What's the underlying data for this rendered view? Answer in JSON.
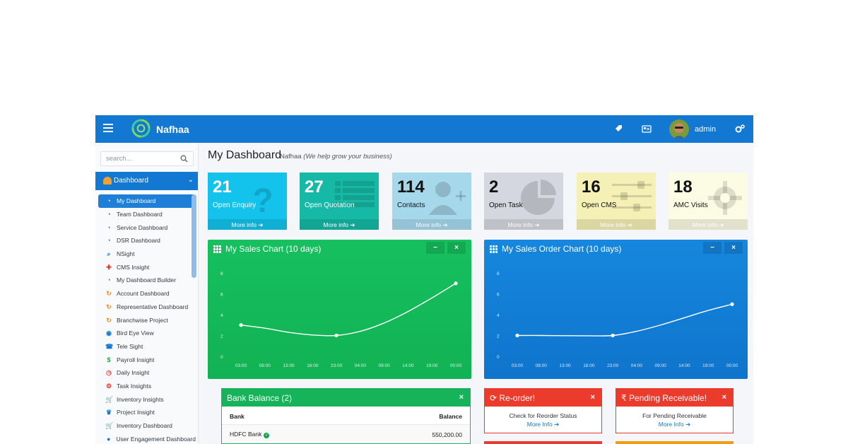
{
  "app": {
    "brand": "Nafhaa",
    "user": "admin"
  },
  "search": {
    "placeholder": "search..."
  },
  "sidebar": {
    "section": "Dashboard",
    "items": [
      {
        "label": "My Dashboard",
        "icon": "gauge-icon",
        "color": "#ffffff"
      },
      {
        "label": "Team Dashboard",
        "icon": "gauge-icon",
        "color": "#5a6570"
      },
      {
        "label": "Service Dashboard",
        "icon": "gauge-icon",
        "color": "#5a6570"
      },
      {
        "label": "DSR Dashboard",
        "icon": "gauge-icon",
        "color": "#5a6570"
      },
      {
        "label": "NSight",
        "icon": "search-icon",
        "color": "#1378d1"
      },
      {
        "label": "CMS Insight",
        "icon": "lifebuoy-icon",
        "color": "#e53935"
      },
      {
        "label": "My Dashboard Builder",
        "icon": "gauge-icon",
        "color": "#5a6570"
      },
      {
        "label": "Account Dashboard",
        "icon": "refresh-icon",
        "color": "#f08a24"
      },
      {
        "label": "Representative Dashboard",
        "icon": "refresh-icon",
        "color": "#f08a24"
      },
      {
        "label": "Branchwise Project",
        "icon": "refresh-icon",
        "color": "#f08a24"
      },
      {
        "label": "Bird Eye View",
        "icon": "eye-icon",
        "color": "#1378d1"
      },
      {
        "label": "Tele Sight",
        "icon": "phone-icon",
        "color": "#1378d1"
      },
      {
        "label": "Payroll Insight",
        "icon": "money-icon",
        "color": "#16a34a"
      },
      {
        "label": "Daily Insight",
        "icon": "clock-icon",
        "color": "#e53935"
      },
      {
        "label": "Task Insights",
        "icon": "cogs-icon",
        "color": "#e53935"
      },
      {
        "label": "Inventory Insights",
        "icon": "cart-icon",
        "color": "#1378d1"
      },
      {
        "label": "Project Insight",
        "icon": "trophy-icon",
        "color": "#1378d1"
      },
      {
        "label": "Inventory Dashboard",
        "icon": "cart-icon",
        "color": "#1378d1"
      },
      {
        "label": "User Engagement Dashboard",
        "icon": "user-icon",
        "color": "#1378d1"
      }
    ]
  },
  "page": {
    "title": "My Dashboard",
    "company": "Nafhaa",
    "tagline": "(We help grow your business)"
  },
  "stat_boxes": [
    {
      "value": "21",
      "label": "Open Enquiry",
      "more": "More info",
      "icon": "question-icon",
      "bg": "#14c3ec",
      "text_color": "#ffffff"
    },
    {
      "value": "27",
      "label": "Open Quotation",
      "more": "More info",
      "icon": "list-icon",
      "bg": "#16b9a6",
      "text_color": "#ffffff"
    },
    {
      "value": "114",
      "label": "Contacts",
      "more": "More info",
      "icon": "user-plus-icon",
      "bg": "#a6d8ec",
      "text_color": "#111111"
    },
    {
      "value": "2",
      "label": "Open Task",
      "more": "More info",
      "icon": "pie-chart-icon",
      "bg": "#d4d7df",
      "text_color": "#111111"
    },
    {
      "value": "16",
      "label": "Open CMS",
      "more": "More info",
      "icon": "sliders-icon",
      "bg": "#f4f0b6",
      "text_color": "#111111"
    },
    {
      "value": "18",
      "label": "AMC Visits",
      "more": "More info",
      "icon": "gear-icon",
      "bg": "#fcfce4",
      "text_color": "#111111"
    }
  ],
  "sales_panel": {
    "title": "My Sales Chart (10 days)",
    "minimize": "−",
    "close": "×"
  },
  "order_panel": {
    "title": "My Sales Order Chart (10 days)",
    "minimize": "−",
    "close": "×"
  },
  "chart_data": [
    {
      "type": "line",
      "title": "My Sales Chart (10 days)",
      "categories": [
        "03:00",
        "08:00",
        "13:00",
        "18:00",
        "23:00",
        "04:00",
        "09:00",
        "14:00",
        "19:00",
        "00:00"
      ],
      "values": [
        3,
        2.7,
        2.3,
        2.05,
        2,
        2.4,
        3.2,
        4.3,
        5.6,
        7
      ],
      "yticks": [
        "0",
        "2",
        "4",
        "6",
        "8"
      ],
      "ylim": [
        0,
        8
      ],
      "marker_indices": [
        0,
        4,
        9
      ]
    },
    {
      "type": "line",
      "title": "My Sales Order Chart (10 days)",
      "categories": [
        "03:00",
        "08:00",
        "13:00",
        "18:00",
        "23:00",
        "04:00",
        "09:00",
        "14:00",
        "19:00",
        "00:00"
      ],
      "values": [
        2,
        2,
        1.98,
        1.97,
        2,
        2.4,
        3,
        3.7,
        4.4,
        5
      ],
      "yticks": [
        "0",
        "2",
        "4",
        "6",
        "8"
      ],
      "ylim": [
        0,
        8
      ],
      "marker_indices": [
        0,
        4,
        9
      ]
    }
  ],
  "bank": {
    "title": "Bank Balance (2)",
    "close": "×",
    "col_bank": "Bank",
    "col_balance": "Balance",
    "rows": [
      {
        "bank": "HDFC Bank",
        "balance": "550,200.00"
      }
    ]
  },
  "reorder": {
    "title": "Re-order!",
    "text": "Check for Reorder Status",
    "link": "More Info",
    "close": "×"
  },
  "pending": {
    "title": "Pending Receivable!",
    "text": "For Pending Receivable",
    "link": "More Info",
    "close": "×"
  }
}
